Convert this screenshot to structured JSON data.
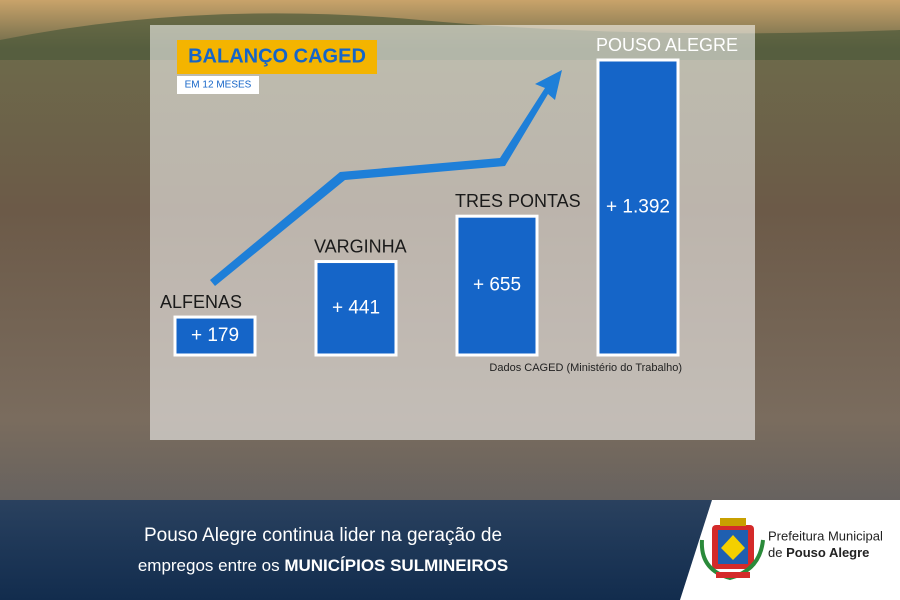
{
  "chart_data": {
    "type": "bar",
    "title": "BALANÇO CAGED",
    "subtitle": "EM 12 MESES",
    "categories": [
      "ALFENAS",
      "VARGINHA",
      "TRES PONTAS",
      "POUSO ALEGRE"
    ],
    "values": [
      179,
      441,
      655,
      1392
    ],
    "value_labels": [
      "+ 179",
      "+ 441",
      "+ 655",
      "+ 1.392"
    ],
    "color": "#1565c8",
    "source": "Dados CAGED (Ministério do Trabalho)"
  },
  "footer": {
    "line1": "Pouso Alegre continua lider na geração de",
    "line2": "empregos entre os",
    "line2_bold": "MUNICÍPIOS SULMINEIROS"
  },
  "logo": {
    "line1": "Prefeitura Municipal",
    "line2_prefix": "de",
    "line2_bold": "Pouso Alegre"
  }
}
